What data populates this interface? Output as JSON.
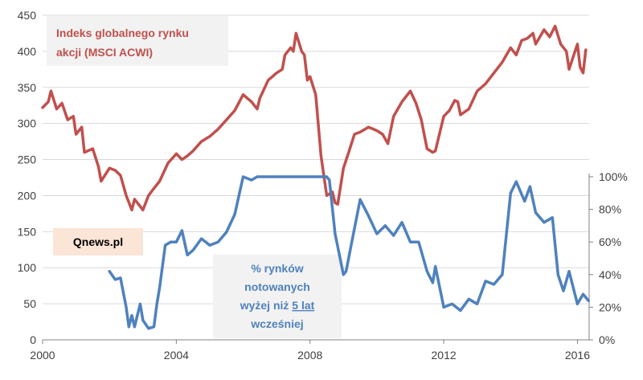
{
  "chart_data": {
    "type": "line",
    "x_axis": {
      "ticks": [
        "2000",
        "2004",
        "2008",
        "2012",
        "2016"
      ],
      "range": [
        2000,
        2016.35
      ]
    },
    "y_axis_left": {
      "ticks": [
        "0",
        "50",
        "100",
        "150",
        "200",
        "250",
        "300",
        "350",
        "400",
        "450"
      ],
      "range": [
        0,
        450
      ]
    },
    "y_axis_right": {
      "ticks": [
        "0%",
        "20%",
        "40%",
        "60%",
        "80%",
        "100%"
      ],
      "range": [
        0,
        1.0
      ]
    },
    "grid": "horizontal",
    "colors": {
      "msci": "#c0504d",
      "percent": "#4f81bd",
      "grid": "#d9d9d9",
      "axis": "#808080"
    },
    "series": [
      {
        "name": "Indeks globalnego rynku akcji (MSCI ACWI)",
        "axis": "left",
        "x": [
          2000.0,
          2000.17,
          2000.25,
          2000.42,
          2000.58,
          2000.75,
          2000.92,
          2001.0,
          2001.17,
          2001.25,
          2001.5,
          2001.67,
          2001.75,
          2002.0,
          2002.17,
          2002.33,
          2002.5,
          2002.67,
          2002.75,
          2002.92,
          2003.0,
          2003.17,
          2003.33,
          2003.5,
          2003.75,
          2004.0,
          2004.17,
          2004.33,
          2004.5,
          2004.75,
          2005.0,
          2005.25,
          2005.5,
          2005.75,
          2006.0,
          2006.25,
          2006.42,
          2006.5,
          2006.75,
          2007.0,
          2007.17,
          2007.25,
          2007.42,
          2007.5,
          2007.58,
          2007.75,
          2007.83,
          2007.92,
          2008.0,
          2008.17,
          2008.33,
          2008.5,
          2008.67,
          2008.75,
          2008.83,
          2009.0,
          2009.17,
          2009.33,
          2009.5,
          2009.75,
          2010.0,
          2010.17,
          2010.33,
          2010.5,
          2010.75,
          2011.0,
          2011.17,
          2011.33,
          2011.5,
          2011.67,
          2011.75,
          2012.0,
          2012.17,
          2012.33,
          2012.42,
          2012.5,
          2012.75,
          2013.0,
          2013.25,
          2013.5,
          2013.75,
          2014.0,
          2014.17,
          2014.33,
          2014.5,
          2014.67,
          2014.75,
          2015.0,
          2015.17,
          2015.33,
          2015.5,
          2015.67,
          2015.75,
          2016.0,
          2016.08,
          2016.17,
          2016.25
        ],
        "values": [
          322,
          330,
          345,
          320,
          328,
          305,
          310,
          285,
          295,
          260,
          265,
          240,
          220,
          238,
          235,
          228,
          200,
          180,
          195,
          185,
          180,
          200,
          210,
          220,
          245,
          258,
          250,
          255,
          262,
          275,
          282,
          292,
          305,
          318,
          340,
          330,
          320,
          335,
          360,
          370,
          375,
          395,
          405,
          400,
          425,
          400,
          395,
          360,
          365,
          340,
          255,
          200,
          205,
          190,
          188,
          238,
          262,
          285,
          288,
          295,
          290,
          285,
          272,
          310,
          330,
          345,
          328,
          305,
          265,
          260,
          262,
          310,
          318,
          332,
          330,
          312,
          320,
          345,
          355,
          370,
          385,
          405,
          395,
          415,
          418,
          425,
          410,
          430,
          420,
          435,
          410,
          400,
          375,
          410,
          378,
          370,
          402
        ]
      },
      {
        "name": "% rynków notowanych wyżej niż 5 lat wcześniej",
        "axis": "right",
        "x": [
          2002.0,
          2002.17,
          2002.33,
          2002.5,
          2002.58,
          2002.67,
          2002.75,
          2002.92,
          2003.0,
          2003.17,
          2003.33,
          2003.42,
          2003.5,
          2003.67,
          2003.83,
          2004.0,
          2004.17,
          2004.33,
          2004.5,
          2004.75,
          2005.0,
          2005.25,
          2005.5,
          2005.75,
          2006.0,
          2006.25,
          2006.42,
          2006.5,
          2006.75,
          2007.0,
          2007.5,
          2008.0,
          2008.5,
          2008.58,
          2008.75,
          2009.0,
          2009.08,
          2009.25,
          2009.5,
          2009.75,
          2010.0,
          2010.25,
          2010.5,
          2010.75,
          2011.0,
          2011.25,
          2011.5,
          2011.67,
          2011.75,
          2012.0,
          2012.25,
          2012.5,
          2012.75,
          2013.0,
          2013.25,
          2013.5,
          2013.75,
          2014.0,
          2014.17,
          2014.42,
          2014.58,
          2014.75,
          2015.0,
          2015.25,
          2015.42,
          2015.58,
          2015.75,
          2016.0,
          2016.17,
          2016.33
        ],
        "values": [
          0.42,
          0.37,
          0.38,
          0.2,
          0.08,
          0.15,
          0.08,
          0.22,
          0.12,
          0.07,
          0.08,
          0.22,
          0.32,
          0.58,
          0.6,
          0.6,
          0.67,
          0.52,
          0.55,
          0.62,
          0.58,
          0.6,
          0.66,
          0.77,
          1.0,
          0.98,
          1.0,
          1.0,
          1.0,
          1.0,
          1.0,
          1.0,
          1.0,
          0.98,
          0.65,
          0.4,
          0.42,
          0.6,
          0.86,
          0.76,
          0.65,
          0.7,
          0.64,
          0.72,
          0.6,
          0.6,
          0.42,
          0.35,
          0.45,
          0.2,
          0.22,
          0.18,
          0.25,
          0.22,
          0.36,
          0.34,
          0.4,
          0.9,
          0.97,
          0.85,
          0.94,
          0.78,
          0.72,
          0.75,
          0.4,
          0.3,
          0.42,
          0.22,
          0.28,
          0.24
        ]
      }
    ],
    "annotations": {
      "msci_label": [
        "Indeks globalnego rynku",
        "akcji (MSCI ACWI)"
      ],
      "source_label": "Qnews.pl",
      "percent_label": {
        "line1": "% rynków",
        "line2": "notowanych",
        "line3_prefix": "wyżej niż ",
        "line3_underlined": "5 lat",
        "line4": "wcześniej"
      }
    }
  }
}
